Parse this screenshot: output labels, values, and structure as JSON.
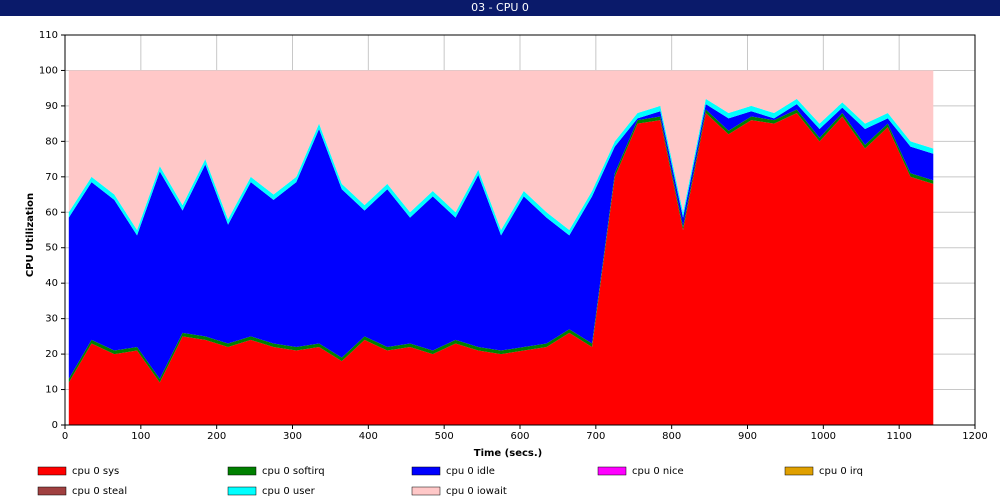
{
  "chart_data": {
    "type": "stacked-area",
    "title": "03 - CPU 0",
    "xlabel": "Time (secs.)",
    "ylabel": "CPU Utilization",
    "x": [
      5,
      35,
      65,
      95,
      125,
      155,
      185,
      215,
      245,
      275,
      305,
      335,
      365,
      395,
      425,
      455,
      485,
      515,
      545,
      575,
      605,
      635,
      665,
      695,
      725,
      755,
      785,
      815,
      845,
      875,
      905,
      935,
      965,
      995,
      1025,
      1055,
      1085,
      1115,
      1145
    ],
    "series": [
      {
        "name": "cpu 0 sys",
        "color": "#ff0000",
        "values": [
          12,
          23,
          20,
          21,
          12,
          25,
          24,
          22,
          24,
          22,
          21,
          22,
          18,
          24,
          21,
          22,
          20,
          23,
          21,
          20,
          21,
          22,
          26,
          22,
          70,
          85,
          86,
          55,
          88,
          82,
          86,
          85,
          88,
          80,
          87,
          78,
          84,
          70,
          68
        ]
      },
      {
        "name": "cpu 0 softirq",
        "color": "#008000",
        "values": [
          1,
          1,
          1,
          1,
          1,
          1,
          1,
          1,
          1,
          1,
          1,
          1,
          1,
          1,
          1,
          1,
          1,
          1,
          1,
          1,
          1,
          1,
          1,
          1,
          1,
          1,
          1,
          1,
          1,
          1,
          1,
          1,
          1,
          1,
          1,
          1,
          1,
          1,
          1
        ]
      },
      {
        "name": "cpu 0 idle",
        "color": "#0000ff",
        "values": [
          45.5,
          44.5,
          42.5,
          31.5,
          58.5,
          34.5,
          48.5,
          33.5,
          43.5,
          40.5,
          46.5,
          60.5,
          47.5,
          35.5,
          44.5,
          35.5,
          43.5,
          34.5,
          48.5,
          32.5,
          42.5,
          35.5,
          26.5,
          41.5,
          7.5,
          0.5,
          1.5,
          2.5,
          1.5,
          3.5,
          1.5,
          0.5,
          1.5,
          2.5,
          1.5,
          4.5,
          1.5,
          7.5,
          7.5
        ]
      },
      {
        "name": "cpu 0 nice",
        "color": "#ff00ff",
        "values": [
          0,
          0,
          0,
          0,
          0,
          0,
          0,
          0,
          0,
          0,
          0,
          0,
          0,
          0,
          0,
          0,
          0,
          0,
          0,
          0,
          0,
          0,
          0,
          0,
          0,
          0,
          0,
          0,
          0,
          0,
          0,
          0,
          0,
          0,
          0,
          0,
          0,
          0,
          0
        ]
      },
      {
        "name": "cpu 0 irq",
        "color": "#e0a000",
        "values": [
          0,
          0,
          0,
          0,
          0,
          0,
          0,
          0,
          0,
          0,
          0,
          0,
          0,
          0,
          0,
          0,
          0,
          0,
          0,
          0,
          0,
          0,
          0,
          0,
          0,
          0,
          0,
          0,
          0,
          0,
          0,
          0,
          0,
          0,
          0,
          0,
          0,
          0,
          0
        ]
      },
      {
        "name": "cpu 0 steal",
        "color": "#a04040",
        "values": [
          0,
          0,
          0,
          0,
          0,
          0,
          0,
          0,
          0,
          0,
          0,
          0,
          0,
          0,
          0,
          0,
          0,
          0,
          0,
          0,
          0,
          0,
          0,
          0,
          0,
          0,
          0,
          0,
          0,
          0,
          0,
          0,
          0,
          0,
          0,
          0,
          0,
          0,
          0
        ]
      },
      {
        "name": "cpu 0 user",
        "color": "#00ffff",
        "values": [
          1.5,
          1.5,
          1.5,
          1.5,
          1.5,
          1.5,
          1.5,
          1.5,
          1.5,
          1.5,
          1.5,
          1.5,
          1.5,
          1.5,
          1.5,
          1.5,
          1.5,
          1.5,
          1.5,
          1.5,
          1.5,
          1.5,
          1.5,
          1.5,
          1.5,
          1.5,
          1.5,
          1.5,
          1.5,
          1.5,
          1.5,
          1.5,
          1.5,
          1.5,
          1.5,
          1.5,
          1.5,
          1.5,
          1.5
        ]
      },
      {
        "name": "cpu 0 iowait",
        "color": "#ffc8c8",
        "values": [
          40,
          30,
          35,
          45,
          27,
          38,
          25,
          42,
          30,
          35,
          30,
          15,
          32,
          38,
          32,
          40,
          34,
          40,
          28,
          45,
          34,
          40,
          45,
          34,
          20,
          12,
          10,
          40,
          8,
          12,
          10,
          12,
          8,
          15,
          9,
          15,
          12,
          20,
          22
        ]
      }
    ],
    "xlim": [
      0,
      1200
    ],
    "xticks": [
      0,
      100,
      200,
      300,
      400,
      500,
      600,
      700,
      800,
      900,
      1000,
      1100,
      1200
    ],
    "ylim": [
      0,
      110
    ],
    "yticks": [
      0,
      10,
      20,
      30,
      40,
      50,
      60,
      70,
      80,
      90,
      100,
      110
    ],
    "grid": true
  }
}
